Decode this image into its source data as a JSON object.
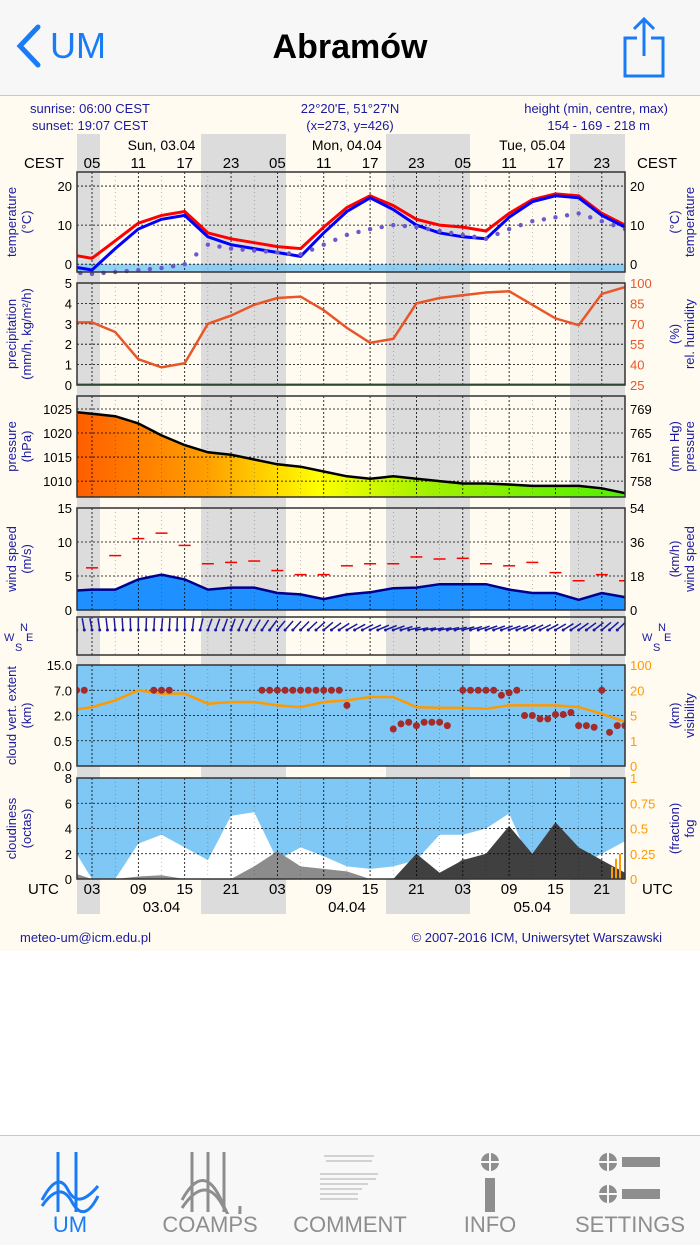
{
  "nav": {
    "back_label": "UM",
    "title": "Abramów"
  },
  "meteogram": {
    "sunrise": "sunrise: 06:00 CEST",
    "sunset": "sunset: 19:07 CEST",
    "coords": "22°20'E, 51°27'N",
    "grid": "(x=273,  y=426)",
    "height_label": "height (min, centre, max)",
    "height_value": "154 - 169 - 218 m",
    "tz_top": "CEST",
    "tz_bottom": "UTC",
    "days_top": [
      "Sun, 03.04",
      "Mon, 04.04",
      "Tue, 05.04"
    ],
    "hours_top": [
      "05",
      "11",
      "17",
      "23",
      "05",
      "11",
      "17",
      "23",
      "05",
      "11",
      "17",
      "23"
    ],
    "hours_bottom": [
      "03",
      "09",
      "15",
      "21",
      "03",
      "09",
      "15",
      "21",
      "03",
      "09",
      "15",
      "21"
    ],
    "days_bottom": [
      "03.04",
      "04.04",
      "05.04"
    ],
    "footer_left": "meteo-um@icm.edu.pl",
    "footer_right": "© 2007-2016 ICM, Uniwersytet Warszawski",
    "wind_dir_letters": {
      "n": "N",
      "w": "W",
      "e": "E",
      "s": "S"
    }
  },
  "chart_data": {
    "type": "line",
    "time_utc": [
      "03.04 00",
      "03.04 03",
      "03.04 06",
      "03.04 09",
      "03.04 12",
      "03.04 15",
      "03.04 18",
      "03.04 21",
      "04.04 00",
      "04.04 03",
      "04.04 06",
      "04.04 09",
      "04.04 12",
      "04.04 15",
      "04.04 18",
      "04.04 21",
      "05.04 00",
      "05.04 03",
      "05.04 06",
      "05.04 09",
      "05.04 12",
      "05.04 15",
      "05.04 18",
      "05.04 21",
      "06.04 00"
    ],
    "panels": [
      {
        "id": "temperature",
        "left_label": [
          "temperature",
          "(°C)"
        ],
        "right_label": [
          "temperature",
          "(°C)"
        ],
        "left_ticks": [
          "20",
          "10",
          "0"
        ],
        "right_ticks": [
          "20",
          "10",
          "0"
        ],
        "ylim": [
          -2,
          23.6
        ],
        "series": [
          {
            "kind": "temperature",
            "color": "#ff0000",
            "values": [
              2.5,
              1.5,
              6,
              10.5,
              12.5,
              13.5,
              8,
              6.5,
              5.5,
              4.5,
              4,
              9.5,
              14.5,
              17.5,
              15,
              11.5,
              10,
              9.5,
              8.5,
              13,
              16.5,
              18,
              17.5,
              13,
              10
            ]
          },
          {
            "kind": "wet-bulb",
            "color": "#0000ff",
            "values": [
              -0.5,
              -1.5,
              4,
              9,
              11.5,
              12.5,
              7,
              5,
              4,
              3,
              2,
              8,
              13.5,
              17,
              14,
              10,
              8,
              7,
              6.5,
              12,
              16,
              17.5,
              17,
              12.5,
              9.5
            ]
          },
          {
            "kind": "dew-point",
            "color": "#6a5acd",
            "values": [
              -2,
              -2.5,
              -2,
              -1.5,
              -1,
              0,
              5,
              4,
              3.5,
              3,
              2.5,
              5,
              7.5,
              9,
              10,
              9.5,
              8.5,
              7.5,
              6.5,
              9,
              11,
              12,
              13,
              11,
              9
            ]
          }
        ]
      },
      {
        "id": "precipitation",
        "left_label": [
          "precipitation",
          "(mm/h, kg/m²/h)"
        ],
        "right_label": [
          "rel. humidity",
          "(%)"
        ],
        "left_ticks": [
          "5",
          "4",
          "3",
          "2",
          "1",
          "0"
        ],
        "right_ticks": [
          "100",
          "85",
          "70",
          "55",
          "40",
          "25"
        ],
        "ylim": [
          0,
          5
        ],
        "y2lim": [
          25,
          100
        ],
        "series": [
          {
            "kind": "relative-humidity",
            "color": "#e8572a",
            "values": [
              71,
              71,
              64,
              44,
              38,
              41,
              70,
              76,
              84,
              89,
              90,
              80,
              67,
              56,
              59,
              85,
              89,
              91,
              93,
              94,
              84,
              74,
              69,
              92,
              97
            ]
          },
          {
            "kind": "precipitation",
            "color": "#ff0000",
            "values": [
              0,
              0,
              0,
              0,
              0,
              0,
              0,
              0,
              0,
              0,
              0,
              0,
              0,
              0,
              0,
              0,
              0,
              0,
              0,
              0,
              0,
              0,
              0,
              0,
              0
            ]
          }
        ]
      },
      {
        "id": "pressure",
        "left_label": [
          "pressure",
          "(hPa)"
        ],
        "right_label": [
          "pressure",
          "(mm Hg)"
        ],
        "left_ticks": [
          "1025",
          "1020",
          "1015",
          "1010"
        ],
        "right_ticks": [
          "769",
          "765",
          "761",
          "758"
        ],
        "ylim": [
          1006.7,
          1027.7
        ],
        "series": [
          {
            "kind": "sea-level-pressure",
            "color": "#000000",
            "values": [
              1024.5,
              1024,
              1023.5,
              1022,
              1019.5,
              1017.5,
              1016,
              1015.5,
              1014.5,
              1013.5,
              1013,
              1012,
              1011,
              1010.5,
              1011,
              1010.5,
              1010,
              1009.5,
              1009.5,
              1009.3,
              1009,
              1009,
              1009,
              1008.5,
              1007.5
            ]
          }
        ]
      },
      {
        "id": "wind-speed",
        "left_label": [
          "wind speed",
          "(m/s)"
        ],
        "right_label": [
          "wind speed",
          "(km/h)"
        ],
        "left_ticks": [
          "15",
          "10",
          "5",
          "0"
        ],
        "right_ticks": [
          "54",
          "36",
          "18",
          "0"
        ],
        "ylim": [
          0,
          15
        ],
        "series": [
          {
            "kind": "mean-wind",
            "color": "#00008b",
            "values": [
              2.8,
              3,
              3,
              4.5,
              5.2,
              4.5,
              3,
              3.3,
              3.3,
              2.5,
              2.3,
              1.6,
              2.3,
              2.6,
              3.2,
              3.3,
              3.8,
              3.8,
              3.8,
              3,
              2.5,
              2.5,
              1.5,
              2.5,
              1.9
            ]
          },
          {
            "kind": "gusts",
            "color": "#ff0000",
            "values": [
              5.5,
              6.2,
              8,
              10.5,
              11.3,
              9.5,
              6.8,
              7,
              7.2,
              5.8,
              5.2,
              5.2,
              6.5,
              6.8,
              6.8,
              7.8,
              7.5,
              7.6,
              6.8,
              6.5,
              7,
              5.5,
              4.3,
              5.2,
              4.3
            ]
          }
        ]
      },
      {
        "id": "wind-direction",
        "direction_deg": [
          170,
          170,
          175,
          180,
          185,
          180,
          200,
          200,
          210,
          220,
          225,
          230,
          240,
          245,
          250,
          260,
          260,
          255,
          250,
          250,
          245,
          240,
          235,
          230,
          225
        ]
      },
      {
        "id": "cloud-extent",
        "left_label": [
          "cloud vert. extent",
          "(km)"
        ],
        "right_label": [
          "visibility",
          "(km)"
        ],
        "left_ticks": [
          "15.0",
          "7.0",
          "2.0",
          "0.5",
          "0.0"
        ],
        "right_ticks": [
          "100",
          "20",
          "5",
          "1",
          "0"
        ],
        "series": [
          {
            "kind": "visibility",
            "color": "#ff9900",
            "values": [
              8,
              10,
              14,
              20,
              18,
              18,
              12,
              13,
              13,
              11,
              10,
              13,
              14,
              16,
              16,
              10,
              9.5,
              9.5,
              9,
              11,
              11,
              11,
              10,
              6,
              4
            ]
          }
        ],
        "cloud_points_km": [
          [
            1,
            7
          ],
          [
            2,
            7
          ],
          [
            11,
            7
          ],
          [
            12,
            7
          ],
          [
            13,
            7
          ],
          [
            25,
            7
          ],
          [
            26,
            7
          ],
          [
            27,
            7
          ],
          [
            28,
            7
          ],
          [
            29,
            7
          ],
          [
            30,
            7
          ],
          [
            31,
            7
          ],
          [
            32,
            7
          ],
          [
            33,
            7
          ],
          [
            34,
            7
          ],
          [
            35,
            7
          ],
          [
            36,
            4
          ],
          [
            42,
            1.2
          ],
          [
            43,
            1.5
          ],
          [
            44,
            1.6
          ],
          [
            45,
            1.4
          ],
          [
            46,
            1.6
          ],
          [
            47,
            1.6
          ],
          [
            48,
            1.6
          ],
          [
            49,
            1.4
          ],
          [
            51,
            7
          ],
          [
            52,
            7
          ],
          [
            53,
            7
          ],
          [
            54,
            7
          ],
          [
            55,
            7
          ],
          [
            56,
            6
          ],
          [
            57,
            6.5
          ],
          [
            58,
            7
          ],
          [
            59,
            2
          ],
          [
            60,
            2
          ],
          [
            61,
            1.8
          ],
          [
            62,
            1.8
          ],
          [
            63,
            2.2
          ],
          [
            64,
            2.2
          ],
          [
            65,
            2.6
          ],
          [
            66,
            1.4
          ],
          [
            67,
            1.4
          ],
          [
            68,
            1.3
          ],
          [
            69,
            7
          ],
          [
            70,
            1
          ],
          [
            71,
            1.4
          ],
          [
            72,
            1.4
          ]
        ]
      },
      {
        "id": "cloudiness",
        "left_label": [
          "cloudiness",
          "(octas)"
        ],
        "right_label": [
          "fog",
          "(fraction)"
        ],
        "left_ticks": [
          "8",
          "6",
          "4",
          "2",
          "0"
        ],
        "right_ticks": [
          "1",
          "0.75",
          "0.5",
          "0.25",
          "0"
        ],
        "ylim": [
          0,
          8
        ],
        "series": [
          {
            "kind": "total",
            "color": "#ffffff",
            "values": [
              3,
              0,
              0,
              2.8,
              3.5,
              2.5,
              1.5,
              5,
              5.3,
              1.5,
              2.5,
              1.8,
              1,
              0.8,
              1,
              1.5,
              3.5,
              3.5,
              4,
              5.2,
              1,
              4.5,
              1,
              2,
              3
            ]
          },
          {
            "kind": "middle",
            "color": "#8c8c8c",
            "values": [
              0.6,
              0,
              0,
              0.2,
              0.3,
              0,
              0,
              0,
              1,
              2.2,
              1,
              0.8,
              0.6,
              0,
              0,
              0,
              0,
              1.6,
              1.2,
              0.5,
              0,
              0,
              0,
              0,
              0
            ]
          },
          {
            "kind": "low",
            "color": "#404040",
            "values": [
              0,
              0,
              0,
              0,
              0,
              0,
              0,
              0,
              0,
              0,
              0,
              0,
              0,
              0,
              0,
              2,
              0.5,
              1.5,
              2,
              4.2,
              2,
              4.5,
              2.5,
              1.5,
              0.5
            ]
          }
        ]
      }
    ]
  },
  "tabs": [
    {
      "label": "UM",
      "icon": "meteogram-icon",
      "active": true
    },
    {
      "label": "COAMPS",
      "icon": "coamps-icon",
      "active": false
    },
    {
      "label": "COMMENT",
      "icon": "comment-icon",
      "active": false
    },
    {
      "label": "INFO",
      "icon": "info-icon",
      "active": false
    },
    {
      "label": "SETTINGS",
      "icon": "settings-icon",
      "active": false
    }
  ],
  "colors": {
    "accent": "#1a7cf5",
    "label_blue": "#1a1aa0",
    "orange": "#ff9900",
    "night": "#dcdcdc",
    "panel_blue": "#7fc8f5",
    "background": "#fffbf0"
  }
}
